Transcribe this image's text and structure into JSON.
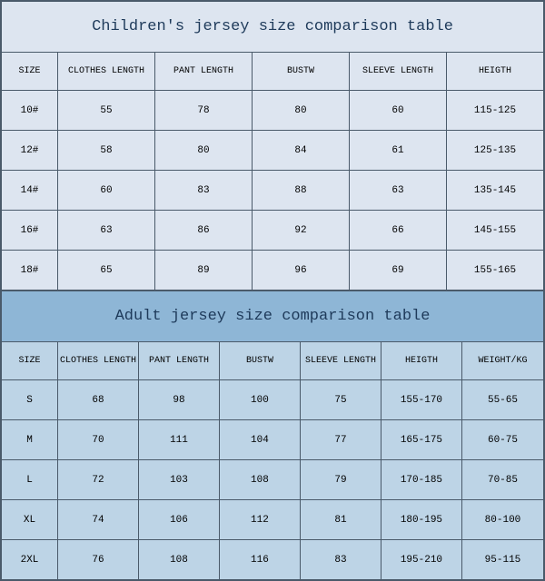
{
  "children": {
    "title": "Children's jersey size comparison table",
    "columns": [
      "SIZE",
      "CLOTHES LENGTH",
      "PANT LENGTH",
      "BUSTW",
      "SLEEVE LENGTH",
      "HEIGTH"
    ],
    "rows": [
      [
        "10#",
        "55",
        "78",
        "80",
        "60",
        "115-125"
      ],
      [
        "12#",
        "58",
        "80",
        "84",
        "61",
        "125-135"
      ],
      [
        "14#",
        "60",
        "83",
        "88",
        "63",
        "135-145"
      ],
      [
        "16#",
        "63",
        "86",
        "92",
        "66",
        "145-155"
      ],
      [
        "18#",
        "65",
        "89",
        "96",
        "69",
        "155-165"
      ]
    ],
    "title_bg": "#dde5f0",
    "row_bg": "#dde5f0"
  },
  "adult": {
    "title": "Adult jersey size comparison table",
    "columns": [
      "SIZE",
      "CLOTHES LENGTH",
      "PANT LENGTH",
      "BUSTW",
      "SLEEVE LENGTH",
      "HEIGTH",
      "WEIGHT/KG"
    ],
    "rows": [
      [
        "S",
        "68",
        "98",
        "100",
        "75",
        "155-170",
        "55-65"
      ],
      [
        "M",
        "70",
        "111",
        "104",
        "77",
        "165-175",
        "60-75"
      ],
      [
        "L",
        "72",
        "103",
        "108",
        "79",
        "170-185",
        "70-85"
      ],
      [
        "XL",
        "74",
        "106",
        "112",
        "81",
        "180-195",
        "80-100"
      ],
      [
        "2XL",
        "76",
        "108",
        "116",
        "83",
        "195-210",
        "95-115"
      ]
    ],
    "title_bg": "#8eb6d6",
    "row_bg": "#bdd4e6"
  },
  "border_color": "#4a5a6a",
  "text_color": "#1e3a5a",
  "font_family": "Courier New"
}
